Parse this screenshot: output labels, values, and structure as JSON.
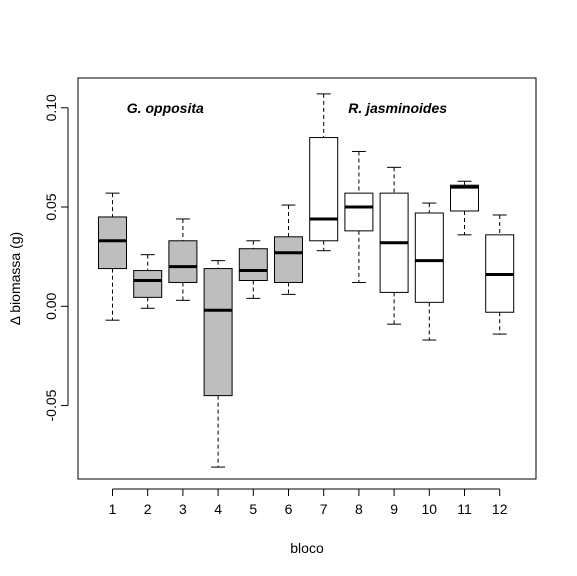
{
  "chart_data": {
    "type": "box",
    "xlabel": "bloco",
    "ylabel": "Δ biomassa (g)",
    "ylim": [
      -0.087,
      0.115
    ],
    "yticks": [
      -0.05,
      0.0,
      0.05,
      0.1
    ],
    "ytick_labels": [
      "-0.05",
      "0.00",
      "0.05",
      "0.10"
    ],
    "categories": [
      "1",
      "2",
      "3",
      "4",
      "5",
      "6",
      "7",
      "8",
      "9",
      "10",
      "11",
      "12"
    ],
    "annotations": [
      {
        "text": "G. opposita",
        "x": 2.5,
        "y": 0.1
      },
      {
        "text": "R. jasminoides",
        "x": 9.1,
        "y": 0.1
      }
    ],
    "colors": {
      "group1_fill": "#bebebe",
      "group2_fill": "#ffffff",
      "stroke": "#000000"
    },
    "boxes": [
      {
        "category": "1",
        "group": 1,
        "min": -0.007,
        "q1": 0.019,
        "median": 0.033,
        "q3": 0.045,
        "max": 0.057
      },
      {
        "category": "2",
        "group": 1,
        "min": -0.001,
        "q1": 0.0045,
        "median": 0.013,
        "q3": 0.018,
        "max": 0.026
      },
      {
        "category": "3",
        "group": 1,
        "min": 0.003,
        "q1": 0.012,
        "median": 0.02,
        "q3": 0.033,
        "max": 0.044
      },
      {
        "category": "4",
        "group": 1,
        "min": -0.081,
        "q1": -0.045,
        "median": -0.002,
        "q3": 0.019,
        "max": 0.023
      },
      {
        "category": "5",
        "group": 1,
        "min": 0.004,
        "q1": 0.013,
        "median": 0.018,
        "q3": 0.029,
        "max": 0.033
      },
      {
        "category": "6",
        "group": 1,
        "min": 0.006,
        "q1": 0.012,
        "median": 0.027,
        "q3": 0.035,
        "max": 0.051
      },
      {
        "category": "7",
        "group": 2,
        "min": 0.028,
        "q1": 0.033,
        "median": 0.044,
        "q3": 0.085,
        "max": 0.107
      },
      {
        "category": "8",
        "group": 2,
        "min": 0.012,
        "q1": 0.038,
        "median": 0.05,
        "q3": 0.057,
        "max": 0.078
      },
      {
        "category": "9",
        "group": 2,
        "min": -0.009,
        "q1": 0.007,
        "median": 0.032,
        "q3": 0.057,
        "max": 0.07
      },
      {
        "category": "10",
        "group": 2,
        "min": -0.017,
        "q1": 0.002,
        "median": 0.023,
        "q3": 0.047,
        "max": 0.052
      },
      {
        "category": "11",
        "group": 2,
        "min": 0.036,
        "q1": 0.048,
        "median": 0.06,
        "q3": 0.061,
        "max": 0.063
      },
      {
        "category": "12",
        "group": 2,
        "min": -0.014,
        "q1": -0.003,
        "median": 0.016,
        "q3": 0.036,
        "max": 0.046
      }
    ]
  }
}
